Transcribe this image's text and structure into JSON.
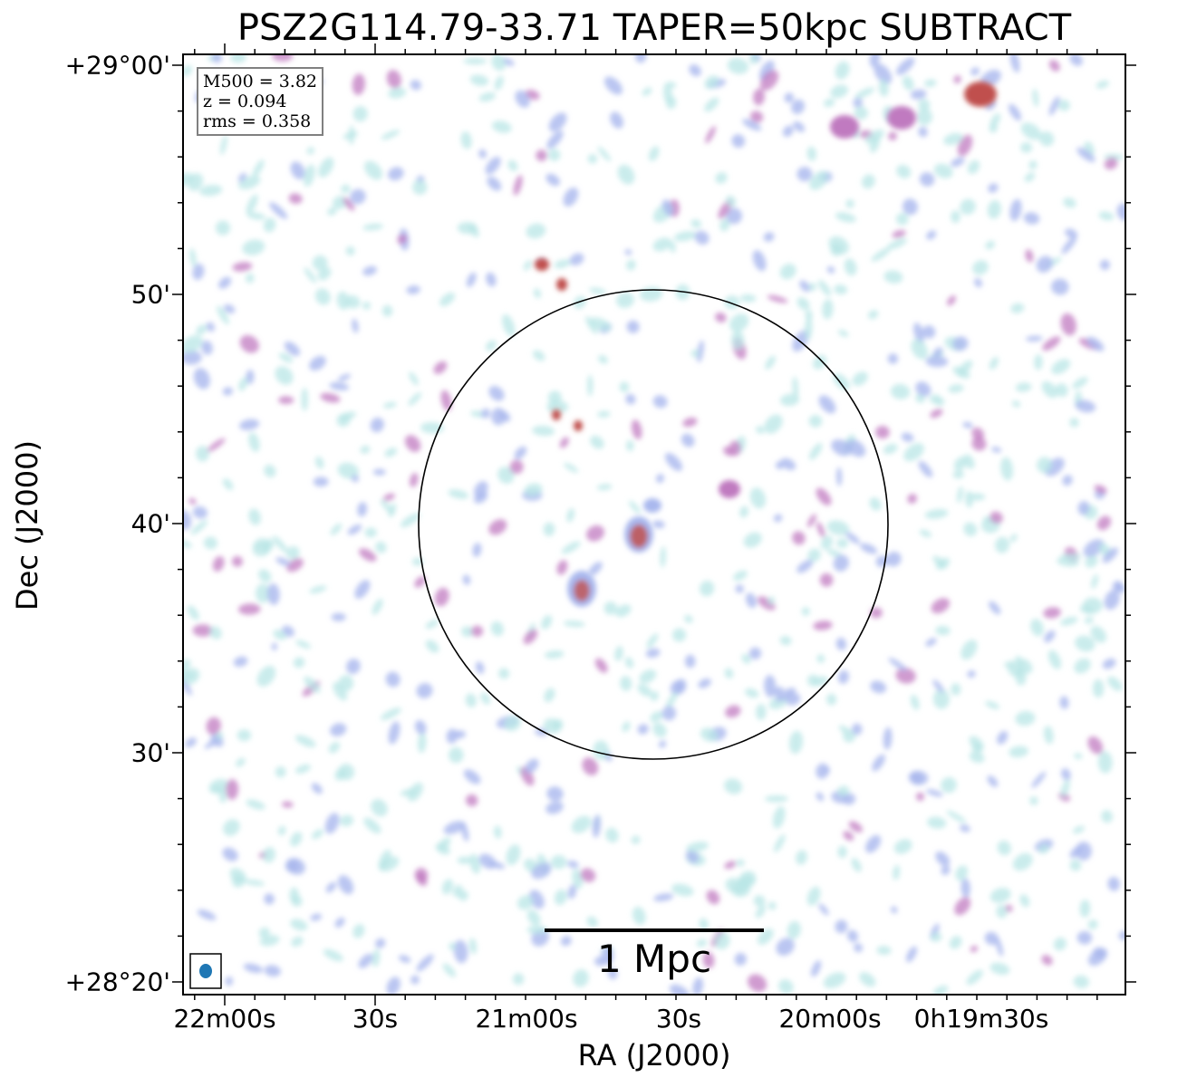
{
  "figure": {
    "title": "PSZ2G114.79-33.71 TAPER=50kpc SUBTRACT",
    "xlabel": "RA (J2000)",
    "ylabel": "Dec (J2000)",
    "x_ticks": [
      "22m00s",
      "30s",
      "21m00s",
      "30s",
      "20m00s",
      "0h19m30s"
    ],
    "y_ticks": [
      "+29°00'",
      "50'",
      "40'",
      "30'",
      "+28°20'"
    ],
    "info": {
      "mass": "M500 = 3.82",
      "redshift": "z = 0.094",
      "rms": "rms = 0.358"
    },
    "scalebar_label": "1 Mpc",
    "colors": {
      "noise_low": "#b8e6e6",
      "noise_mid": "#a9b8ee",
      "noise_high": "#c07ac0",
      "source": "#c0504d",
      "beam": "#1f77b4"
    }
  }
}
